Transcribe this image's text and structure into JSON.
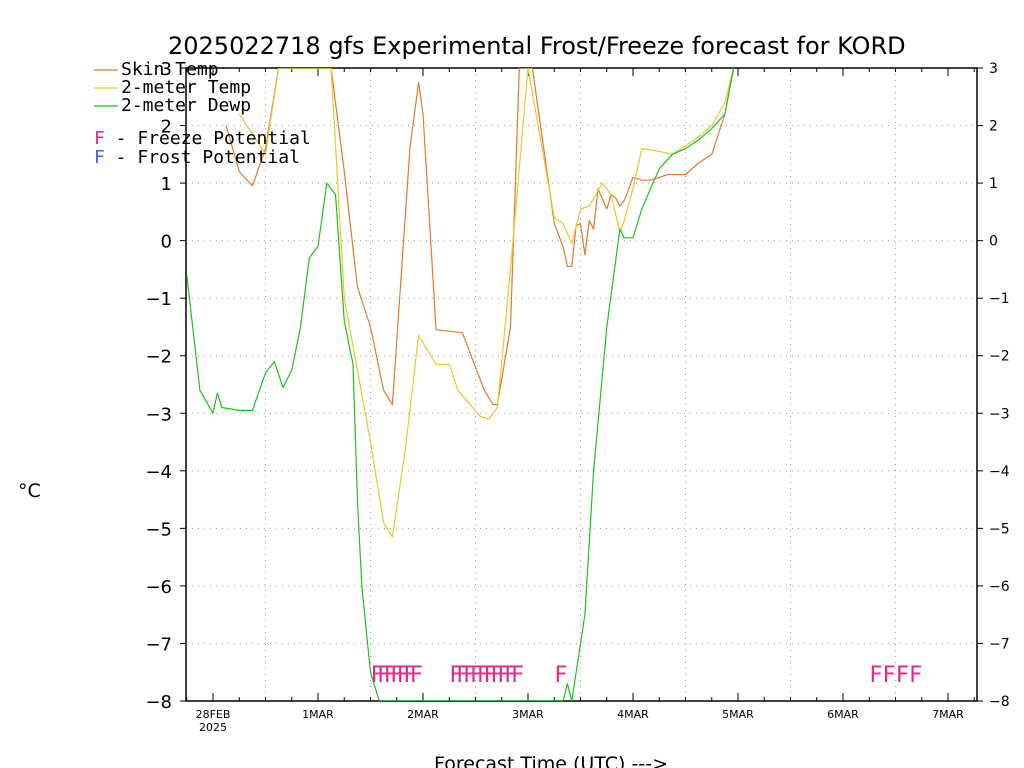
{
  "chart_data": {
    "type": "line",
    "title": "2025022718 gfs Experimental Frost/Freeze forecast for KORD",
    "ylabel": "°C",
    "xlabel": "Forecast Time (UTC) --->",
    "ylim": [
      -8,
      3
    ],
    "xlim": [
      "2025-02-27T18:00Z",
      "2025-03-07T12:00Z"
    ],
    "grid": true,
    "y_ticks": [
      3,
      2,
      1,
      0,
      -1,
      -2,
      -3,
      -4,
      -5,
      -6,
      -7,
      -8
    ],
    "x_ticks": [
      {
        "date": "2025-02-28",
        "label": "28FEB",
        "sublabel": "2025"
      },
      {
        "date": "2025-03-01",
        "label": "1MAR"
      },
      {
        "date": "2025-03-02",
        "label": "2MAR"
      },
      {
        "date": "2025-03-03",
        "label": "3MAR"
      },
      {
        "date": "2025-03-04",
        "label": "4MAR"
      },
      {
        "date": "2025-03-05",
        "label": "5MAR"
      },
      {
        "date": "2025-03-06",
        "label": "6MAR"
      },
      {
        "date": "2025-03-07",
        "label": "7MAR"
      }
    ],
    "legend_position": "top-left",
    "series": [
      {
        "name": "Skin Temp",
        "color": "#e07a30",
        "x": [
          "2025-02-28T03:00Z",
          "2025-02-28T06:00Z",
          "2025-02-28T09:00Z",
          "2025-02-28T12:00Z",
          "2025-02-28T15:00Z",
          "2025-03-01T03:00Z",
          "2025-03-01T06:00Z",
          "2025-03-01T09:00Z",
          "2025-03-01T12:00Z",
          "2025-03-01T15:00Z",
          "2025-03-01T17:00Z",
          "2025-03-01T21:00Z",
          "2025-03-01T23:00Z",
          "2025-03-02T00:00Z",
          "2025-03-02T03:00Z",
          "2025-03-02T09:00Z",
          "2025-03-02T14:00Z",
          "2025-03-02T16:00Z",
          "2025-03-02T17:00Z",
          "2025-03-02T20:00Z",
          "2025-03-02T22:00Z",
          "2025-03-03T01:00Z",
          "2025-03-03T06:00Z",
          "2025-03-03T07:00Z",
          "2025-03-03T08:00Z",
          "2025-03-03T09:00Z",
          "2025-03-03T10:00Z",
          "2025-03-03T11:00Z",
          "2025-03-03T12:00Z",
          "2025-03-03T13:00Z",
          "2025-03-03T14:00Z",
          "2025-03-03T15:00Z",
          "2025-03-03T16:00Z",
          "2025-03-03T18:00Z",
          "2025-03-03T19:00Z",
          "2025-03-03T20:00Z",
          "2025-03-03T21:00Z",
          "2025-03-03T22:00Z",
          "2025-03-04T00:00Z",
          "2025-03-04T02:00Z",
          "2025-03-04T04:00Z",
          "2025-03-04T06:00Z",
          "2025-03-04T08:00Z",
          "2025-03-04T12:00Z",
          "2025-03-04T15:00Z",
          "2025-03-04T18:00Z",
          "2025-03-04T21:00Z",
          "2025-03-04T23:00Z"
        ],
        "y": [
          2.0,
          1.2,
          0.95,
          1.6,
          3.0,
          3.0,
          1.2,
          -0.8,
          -1.5,
          -2.6,
          -2.85,
          1.6,
          2.75,
          2.2,
          -1.55,
          -1.6,
          -2.6,
          -2.85,
          -2.85,
          -1.5,
          3.0,
          3.0,
          0.3,
          0.1,
          -0.1,
          -0.45,
          -0.45,
          0.25,
          0.3,
          -0.25,
          0.35,
          0.2,
          0.9,
          0.55,
          0.8,
          0.75,
          0.6,
          0.7,
          1.1,
          1.05,
          1.05,
          1.1,
          1.15,
          1.15,
          1.35,
          1.5,
          2.2,
          3.0
        ]
      },
      {
        "name": "2-meter Temp",
        "color": "#e8c830",
        "x": [
          "2025-02-28T06:00Z",
          "2025-02-28T12:00Z",
          "2025-02-28T15:00Z",
          "2025-03-01T03:00Z",
          "2025-03-01T06:00Z",
          "2025-03-01T12:00Z",
          "2025-03-01T15:00Z",
          "2025-03-01T17:00Z",
          "2025-03-01T20:00Z",
          "2025-03-01T23:00Z",
          "2025-03-02T03:00Z",
          "2025-03-02T06:00Z",
          "2025-03-02T08:00Z",
          "2025-03-02T13:00Z",
          "2025-03-02T15:00Z",
          "2025-03-02T17:00Z",
          "2025-03-02T20:00Z",
          "2025-03-03T00:00Z",
          "2025-03-03T06:00Z",
          "2025-03-03T08:00Z",
          "2025-03-03T10:00Z",
          "2025-03-03T12:00Z",
          "2025-03-03T14:00Z",
          "2025-03-03T17:00Z",
          "2025-03-03T19:00Z",
          "2025-03-03T21:00Z",
          "2025-03-03T22:00Z",
          "2025-03-04T00:00Z",
          "2025-03-04T02:00Z",
          "2025-03-04T06:00Z",
          "2025-03-04T09:00Z",
          "2025-03-04T12:00Z",
          "2025-03-04T15:00Z",
          "2025-03-04T18:00Z",
          "2025-03-04T21:00Z",
          "2025-03-04T23:00Z"
        ],
        "y": [
          2.2,
          1.5,
          3.0,
          3.0,
          -1.0,
          -3.5,
          -4.9,
          -5.15,
          -3.6,
          -1.65,
          -2.15,
          -2.15,
          -2.6,
          -3.05,
          -3.1,
          -2.9,
          -0.5,
          3.0,
          0.4,
          0.3,
          -0.05,
          0.55,
          0.6,
          1.0,
          0.8,
          0.15,
          0.35,
          0.9,
          1.6,
          1.55,
          1.5,
          1.65,
          1.8,
          2.0,
          2.4,
          3.0
        ]
      },
      {
        "name": "2-meter Dewp",
        "color": "#20c020",
        "x": [
          "2025-02-27T18:00Z",
          "2025-02-27T21:00Z",
          "2025-02-28T00:00Z",
          "2025-02-28T01:00Z",
          "2025-02-28T02:00Z",
          "2025-02-28T06:00Z",
          "2025-02-28T09:00Z",
          "2025-02-28T12:00Z",
          "2025-02-28T14:00Z",
          "2025-02-28T16:00Z",
          "2025-02-28T18:00Z",
          "2025-02-28T20:00Z",
          "2025-02-28T22:00Z",
          "2025-03-01T00:00Z",
          "2025-03-01T02:00Z",
          "2025-03-01T04:00Z",
          "2025-03-01T06:00Z",
          "2025-03-01T08:00Z",
          "2025-03-01T09:00Z",
          "2025-03-01T10:00Z",
          "2025-03-01T12:00Z",
          "2025-03-01T14:00Z",
          "2025-03-01T15:00Z",
          "2025-03-03T08:00Z",
          "2025-03-03T09:00Z",
          "2025-03-03T10:00Z",
          "2025-03-03T13:00Z",
          "2025-03-03T15:00Z",
          "2025-03-03T18:00Z",
          "2025-03-03T21:00Z",
          "2025-03-03T22:00Z",
          "2025-03-04T00:00Z",
          "2025-03-04T02:00Z",
          "2025-03-04T04:00Z",
          "2025-03-04T06:00Z",
          "2025-03-04T09:00Z",
          "2025-03-04T12:00Z",
          "2025-03-04T15:00Z",
          "2025-03-04T18:00Z",
          "2025-03-04T21:00Z",
          "2025-03-04T23:00Z"
        ],
        "y": [
          -0.6,
          -2.6,
          -3.0,
          -2.65,
          -2.9,
          -2.95,
          -2.95,
          -2.3,
          -2.1,
          -2.55,
          -2.25,
          -1.5,
          -0.3,
          -0.1,
          1.0,
          0.8,
          -1.4,
          -2.15,
          -4.5,
          -6.0,
          -7.5,
          -8.0,
          -8.0,
          -8.0,
          -7.7,
          -8.0,
          -6.5,
          -4.0,
          -1.5,
          0.2,
          0.05,
          0.05,
          0.55,
          0.9,
          1.25,
          1.5,
          1.6,
          1.75,
          1.95,
          2.2,
          3.0
        ]
      }
    ],
    "flags": [
      {
        "x": "2025-03-01T12:00Z",
        "label": "FFFFFFF",
        "type": "freeze"
      },
      {
        "x": "2025-03-02T06:00Z",
        "label": "FFFFFFFFFF",
        "type": "freeze"
      },
      {
        "x": "2025-03-03T06:00Z",
        "label": "F",
        "type": "freeze"
      },
      {
        "x": "2025-03-06T06:00Z",
        "label": "FFFF",
        "type": "freeze"
      }
    ],
    "legend_entries": [
      {
        "name": "Skin Temp",
        "color": "#e07a30"
      },
      {
        "name": "2-meter Temp",
        "color": "#e8c830"
      },
      {
        "name": "2-meter Dewp",
        "color": "#20c020"
      }
    ],
    "potential_legend": [
      {
        "letter": "F",
        "text": " - Freeze Potential",
        "color": "#e02a8a"
      },
      {
        "letter": "F",
        "text": " - Frost Potential",
        "color": "#4a5cf0"
      }
    ]
  }
}
